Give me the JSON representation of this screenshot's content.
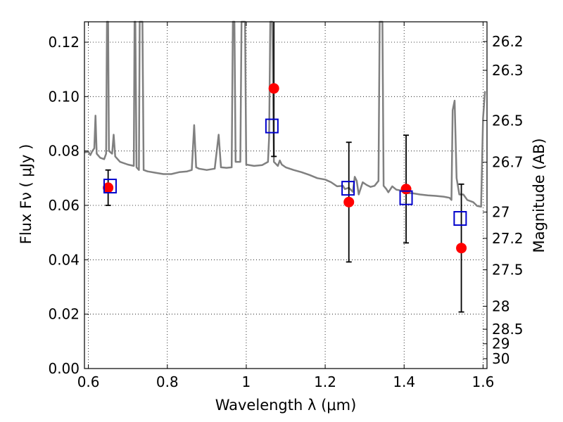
{
  "chart_data": {
    "type": "scatter",
    "xlabel": "Wavelength  λ (μm)",
    "ylabel": "Flux  Fν  ( μJy )",
    "ylabel_right": "Magnitude (AB)",
    "xlim": [
      0.59,
      1.61
    ],
    "ylim": [
      0.0,
      0.1275
    ],
    "x_ticks": [
      0.6,
      0.8,
      1.0,
      1.2,
      1.4,
      1.6
    ],
    "x_tick_labels": [
      "0.6",
      "0.8",
      "1",
      "1.2",
      "1.4",
      "1.6"
    ],
    "y_ticks": [
      0.0,
      0.02,
      0.04,
      0.06,
      0.08,
      0.1,
      0.12
    ],
    "y_tick_labels": [
      "0.00",
      "0.02",
      "0.04",
      "0.06",
      "0.08",
      "0.10",
      "0.12"
    ],
    "right_ticks": [
      26.2,
      26.3,
      26.5,
      26.7,
      27,
      27.2,
      27.5,
      28,
      28.5,
      29,
      30
    ],
    "right_tick_labels": [
      "26.2",
      "26.3",
      "26.5",
      "26.7",
      "27",
      "27.2",
      "27.5",
      "28",
      "28.5",
      "29",
      "30"
    ],
    "grid": true,
    "observed": {
      "color": "#ff0000",
      "marker": "circle",
      "x": [
        0.65,
        1.07,
        1.26,
        1.405,
        1.545
      ],
      "y": [
        0.0665,
        0.103,
        0.0612,
        0.066,
        0.0443
      ],
      "yerr": [
        0.0065,
        0.025,
        0.022,
        0.0198,
        0.0235
      ]
    },
    "model_bands": {
      "color": "#0000cc",
      "marker": "square",
      "x": [
        0.655,
        1.065,
        1.258,
        1.405,
        1.542
      ],
      "y": [
        0.0671,
        0.0892,
        0.0663,
        0.0628,
        0.0552
      ]
    },
    "model_spectrum": {
      "color": "#808080",
      "points": [
        [
          0.59,
          0.0795
        ],
        [
          0.6,
          0.0797
        ],
        [
          0.605,
          0.0785
        ],
        [
          0.61,
          0.08
        ],
        [
          0.615,
          0.081
        ],
        [
          0.618,
          0.093
        ],
        [
          0.621,
          0.079
        ],
        [
          0.63,
          0.0775
        ],
        [
          0.64,
          0.077
        ],
        [
          0.645,
          0.079
        ],
        [
          0.647,
          0.1275
        ],
        [
          0.65,
          0.1275
        ],
        [
          0.652,
          0.08
        ],
        [
          0.66,
          0.079
        ],
        [
          0.664,
          0.086
        ],
        [
          0.668,
          0.078
        ],
        [
          0.68,
          0.076
        ],
        [
          0.7,
          0.075
        ],
        [
          0.715,
          0.0745
        ],
        [
          0.717,
          0.1275
        ],
        [
          0.719,
          0.1275
        ],
        [
          0.722,
          0.074
        ],
        [
          0.728,
          0.073
        ],
        [
          0.73,
          0.1275
        ],
        [
          0.737,
          0.1275
        ],
        [
          0.74,
          0.073
        ],
        [
          0.75,
          0.0725
        ],
        [
          0.77,
          0.072
        ],
        [
          0.79,
          0.0715
        ],
        [
          0.81,
          0.0715
        ],
        [
          0.83,
          0.0722
        ],
        [
          0.85,
          0.0725
        ],
        [
          0.862,
          0.073
        ],
        [
          0.868,
          0.0895
        ],
        [
          0.873,
          0.074
        ],
        [
          0.88,
          0.0735
        ],
        [
          0.9,
          0.073
        ],
        [
          0.92,
          0.0735
        ],
        [
          0.93,
          0.086
        ],
        [
          0.936,
          0.074
        ],
        [
          0.95,
          0.0738
        ],
        [
          0.963,
          0.074
        ],
        [
          0.966,
          0.1275
        ],
        [
          0.97,
          0.1275
        ],
        [
          0.973,
          0.076
        ],
        [
          0.985,
          0.076
        ],
        [
          0.988,
          0.1275
        ],
        [
          0.997,
          0.1275
        ],
        [
          1.0,
          0.075
        ],
        [
          1.02,
          0.0745
        ],
        [
          1.04,
          0.0748
        ],
        [
          1.055,
          0.076
        ],
        [
          1.058,
          0.085
        ],
        [
          1.061,
          0.1275
        ],
        [
          1.066,
          0.1275
        ],
        [
          1.07,
          0.076
        ],
        [
          1.08,
          0.0745
        ],
        [
          1.085,
          0.0765
        ],
        [
          1.09,
          0.075
        ],
        [
          1.1,
          0.074
        ],
        [
          1.12,
          0.073
        ],
        [
          1.14,
          0.0722
        ],
        [
          1.16,
          0.0712
        ],
        [
          1.18,
          0.07
        ],
        [
          1.2,
          0.0695
        ],
        [
          1.215,
          0.0685
        ],
        [
          1.23,
          0.067
        ],
        [
          1.245,
          0.0672
        ],
        [
          1.25,
          0.066
        ],
        [
          1.26,
          0.0665
        ],
        [
          1.27,
          0.065
        ],
        [
          1.275,
          0.0705
        ],
        [
          1.28,
          0.069
        ],
        [
          1.285,
          0.064
        ],
        [
          1.295,
          0.0685
        ],
        [
          1.305,
          0.0675
        ],
        [
          1.315,
          0.0668
        ],
        [
          1.325,
          0.0672
        ],
        [
          1.335,
          0.069
        ],
        [
          1.338,
          0.1275
        ],
        [
          1.345,
          0.1275
        ],
        [
          1.348,
          0.0672
        ],
        [
          1.355,
          0.066
        ],
        [
          1.36,
          0.0648
        ],
        [
          1.37,
          0.067
        ],
        [
          1.38,
          0.0658
        ],
        [
          1.39,
          0.0655
        ],
        [
          1.4,
          0.065
        ],
        [
          1.41,
          0.0645
        ],
        [
          1.42,
          0.0645
        ],
        [
          1.44,
          0.064
        ],
        [
          1.46,
          0.0637
        ],
        [
          1.48,
          0.0635
        ],
        [
          1.5,
          0.0632
        ],
        [
          1.515,
          0.0628
        ],
        [
          1.52,
          0.062
        ],
        [
          1.523,
          0.095
        ],
        [
          1.528,
          0.0985
        ],
        [
          1.533,
          0.07
        ],
        [
          1.54,
          0.064
        ],
        [
          1.55,
          0.064
        ],
        [
          1.56,
          0.062
        ],
        [
          1.575,
          0.0612
        ],
        [
          1.585,
          0.0598
        ],
        [
          1.595,
          0.0595
        ],
        [
          1.6,
          0.092
        ],
        [
          1.605,
          0.102
        ]
      ]
    }
  }
}
